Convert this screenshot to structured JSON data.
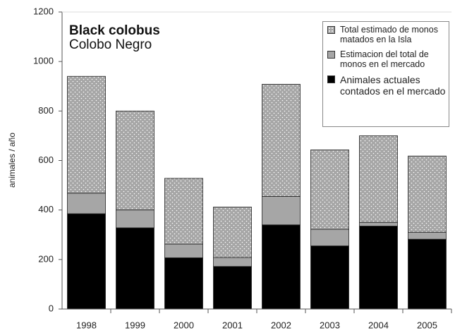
{
  "chart_data": {
    "type": "stacked-bar",
    "title": "Black colobus",
    "subtitle": "Colobo Negro",
    "y_label": "animales / año",
    "categories": [
      "1998",
      "1999",
      "2000",
      "2001",
      "2002",
      "2003",
      "2004",
      "2005"
    ],
    "series": [
      {
        "name": "Animales actuales contados en el mercado",
        "color": "#000000",
        "values": [
          385,
          328,
          207,
          172,
          340,
          255,
          335,
          282
        ]
      },
      {
        "name": "Estimacion del total de monos en el mercado",
        "color": "#a6a6a6",
        "values": [
          83,
          72,
          55,
          36,
          115,
          67,
          15,
          28
        ]
      },
      {
        "name": "Total estimado de monos matados en la Isla",
        "color": "#a6a6a6",
        "hatch": "dots",
        "values": [
          472,
          400,
          266,
          204,
          453,
          321,
          350,
          308
        ]
      }
    ],
    "ylim": [
      0,
      1200
    ],
    "yticks": [
      0,
      200,
      400,
      600,
      800,
      1000,
      1200
    ],
    "grid": false
  }
}
